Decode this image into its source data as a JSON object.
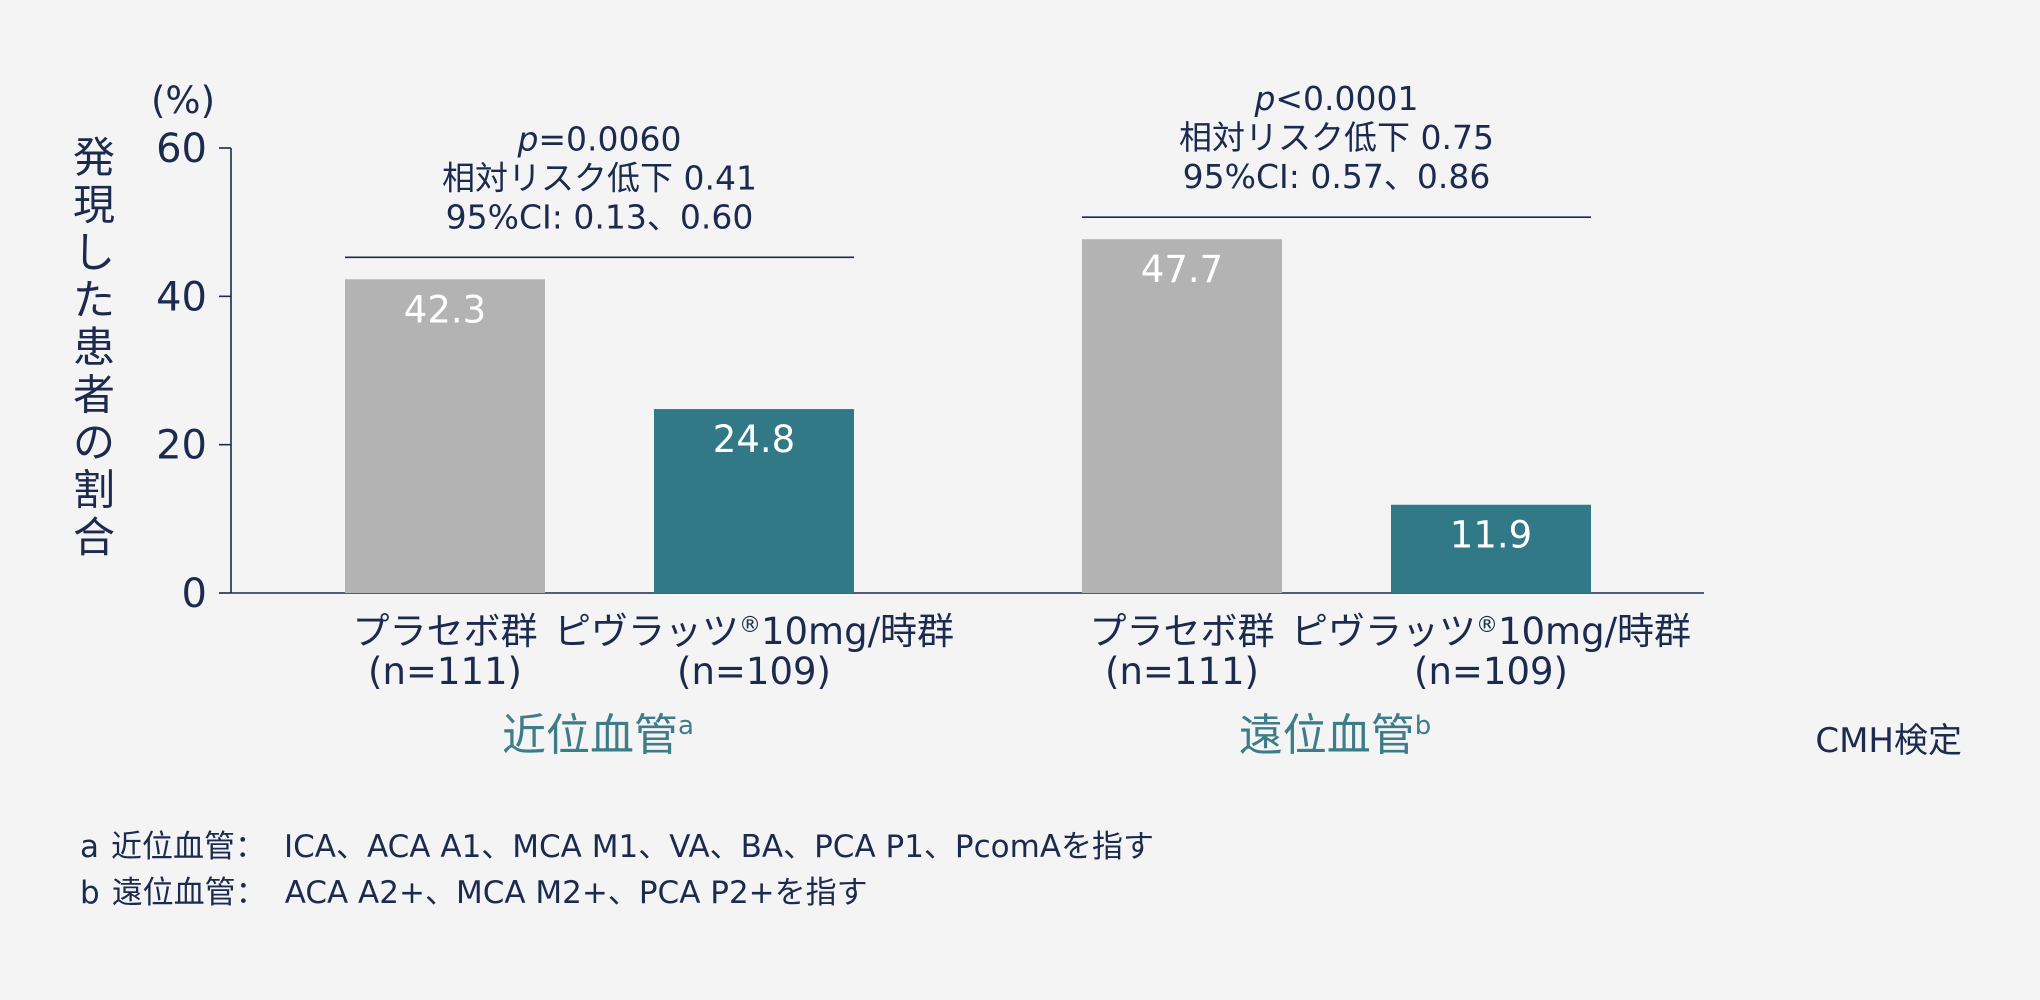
{
  "chart_data": {
    "type": "bar",
    "y_unit_label": "(%)",
    "ylabel": "発現した患者の割合",
    "ylim": [
      0,
      60
    ],
    "yticks": [
      0,
      20,
      40,
      60
    ],
    "groups": [
      {
        "name": "近位血管",
        "superscript": "a",
        "bars": [
          {
            "label": "プラセボ群",
            "n": "(n=111)",
            "value": 42.3,
            "value_label": "42.3",
            "series": "placebo"
          },
          {
            "label": "ピヴラッツ",
            "label_mark": "®",
            "label_suffix": "10mg/時群",
            "n": "(n=109)",
            "value": 24.8,
            "value_label": "24.8",
            "series": "treatment"
          }
        ],
        "stat": {
          "p_symbol": "p",
          "p_rest": "=0.0060",
          "rrr": "相対リスク低下 0.41",
          "ci": "95%CI: 0.13、0.60"
        }
      },
      {
        "name": "遠位血管",
        "superscript": "b",
        "bars": [
          {
            "label": "プラセボ群",
            "n": "(n=111)",
            "value": 47.7,
            "value_label": "47.7",
            "series": "placebo"
          },
          {
            "label": "ピヴラッツ",
            "label_mark": "®",
            "label_suffix": "10mg/時群",
            "n": "(n=109)",
            "value": 11.9,
            "value_label": "11.9",
            "series": "treatment"
          }
        ],
        "stat": {
          "p_symbol": "p",
          "p_rest": "<0.0001",
          "rrr": "相対リスク低下 0.75",
          "ci": "95%CI: 0.57、0.86"
        }
      }
    ],
    "colors": {
      "placebo": "#b3b3b3",
      "treatment": "#317986",
      "group_label": "#3c7d89",
      "text": "#1b2a4e",
      "value_text": "#ffffff"
    },
    "test_note": "CMH検定",
    "grid": false,
    "legend": "none"
  },
  "footnotes": [
    {
      "letter": "a",
      "term": "近位血管：",
      "text": "ICA、ACA A1、MCA M1、VA、BA、PCA P1、PcomAを指す"
    },
    {
      "letter": "b",
      "term": "遠位血管：",
      "text": "ACA A2+、MCA M2+、PCA P2+を指す"
    }
  ]
}
